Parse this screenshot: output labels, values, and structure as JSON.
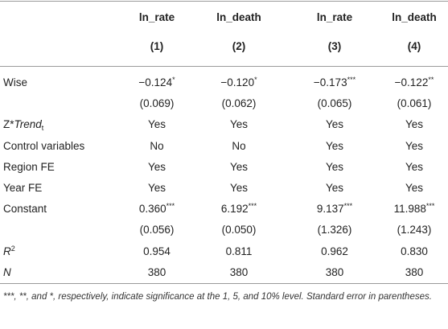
{
  "table": {
    "columns": [
      {
        "name": "ln_rate",
        "num": "(1)"
      },
      {
        "name": "ln_death",
        "num": "(2)"
      },
      {
        "name": "ln_rate",
        "num": "(3)"
      },
      {
        "name": "ln_death",
        "num": "(4)"
      }
    ],
    "rows": [
      {
        "label": "Wise",
        "cells": [
          {
            "text": "−0.124",
            "stars": "*"
          },
          {
            "text": "−0.120",
            "stars": "*"
          },
          {
            "text": "−0.173",
            "stars": "***"
          },
          {
            "text": "−0.122",
            "stars": "**"
          }
        ]
      },
      {
        "cells": [
          "(0.069)",
          "(0.062)",
          "(0.065)",
          "(0.061)"
        ]
      },
      {
        "label": "Z*",
        "label_italic": "Trend",
        "label_sub": "t",
        "cells": [
          "Yes",
          "Yes",
          "Yes",
          "Yes"
        ]
      },
      {
        "label": "Control variables",
        "cells": [
          "No",
          "No",
          "Yes",
          "Yes"
        ]
      },
      {
        "label": "Region FE",
        "cells": [
          "Yes",
          "Yes",
          "Yes",
          "Yes"
        ]
      },
      {
        "label": "Year FE",
        "cells": [
          "Yes",
          "Yes",
          "Yes",
          "Yes"
        ]
      },
      {
        "label": "Constant",
        "cells": [
          {
            "text": "0.360",
            "stars": "***"
          },
          {
            "text": "6.192",
            "stars": "***"
          },
          {
            "text": "9.137",
            "stars": "***"
          },
          {
            "text": "11.988",
            "stars": "***"
          }
        ]
      },
      {
        "cells": [
          "(0.056)",
          "(0.050)",
          "(1.326)",
          "(1.243)"
        ]
      },
      {
        "label_italic": "R",
        "label_sup": "2",
        "cells": [
          "0.954",
          "0.811",
          "0.962",
          "0.830"
        ]
      },
      {
        "label_italic": "N",
        "cells": [
          "380",
          "380",
          "380",
          "380"
        ]
      }
    ],
    "footnote": "***, **, and *, respectively, indicate significance at the 1, 5, and 10% level. Standard error in parentheses."
  }
}
